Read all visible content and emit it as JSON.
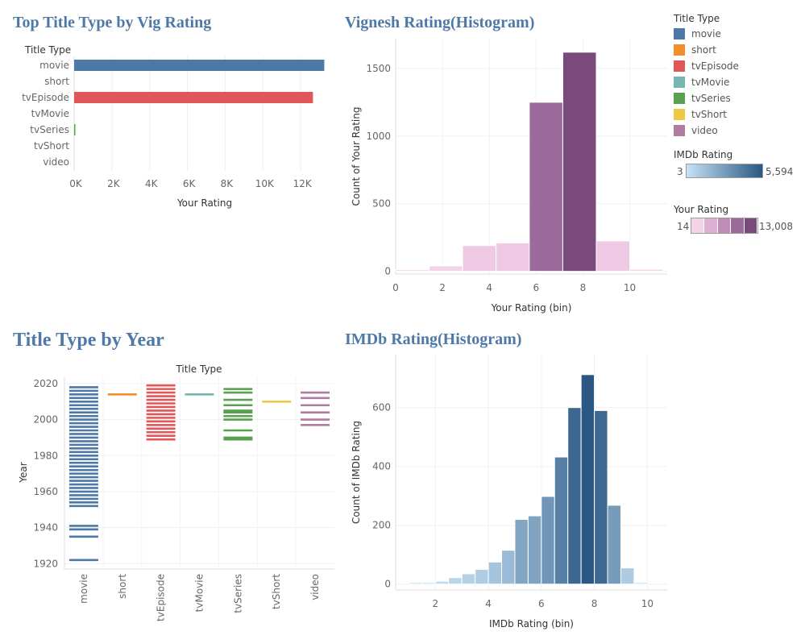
{
  "titles": {
    "t1": "Top Title Type by Vig Rating",
    "t2": "Vignesh Rating(Histogram)",
    "t3": "Title Type by Year",
    "t4": "IMDb Rating(Histogram)"
  },
  "legend": {
    "title": "Title Type",
    "items": [
      {
        "label": "movie",
        "color": "#4e79a7"
      },
      {
        "label": "short",
        "color": "#f28e2b"
      },
      {
        "label": "tvEpisode",
        "color": "#e15759"
      },
      {
        "label": "tvMovie",
        "color": "#76b7b2"
      },
      {
        "label": "tvSeries",
        "color": "#59a14f"
      },
      {
        "label": "tvShort",
        "color": "#edc948"
      },
      {
        "label": "video",
        "color": "#b07aa1"
      }
    ],
    "imdb_scale": {
      "title": "IMDb Rating",
      "min": "3",
      "max": "5,594",
      "color_low": "#c6e2f5",
      "color_high": "#2a5783"
    },
    "your_scale": {
      "title": "Your Rating",
      "min": "14",
      "max": "13,008",
      "colors": [
        "#f2d4e8",
        "#dbb0d2",
        "#bf8db8",
        "#9d6a9c",
        "#7b4a7d"
      ]
    }
  },
  "chart_data": [
    {
      "type": "bar",
      "title": "Top Title Type by Vig Rating",
      "header": "Title Type",
      "orientation": "horizontal",
      "categories": [
        "movie",
        "short",
        "tvEpisode",
        "tvMovie",
        "tvSeries",
        "tvShort",
        "video"
      ],
      "values": [
        13250,
        0,
        12650,
        0,
        30,
        0,
        0
      ],
      "colors": [
        "#4e79a7",
        "#f28e2b",
        "#e15759",
        "#76b7b2",
        "#59a14f",
        "#edc948",
        "#b07aa1"
      ],
      "xlabel": "Your Rating",
      "xticks": [
        "0K",
        "2K",
        "4K",
        "6K",
        "8K",
        "10K",
        "12K"
      ],
      "xlim": [
        0,
        14000
      ]
    },
    {
      "type": "bar",
      "title": "Vignesh Rating(Histogram)",
      "bins": [
        {
          "x": 0,
          "v": 5
        },
        {
          "x": 1.43,
          "v": 40
        },
        {
          "x": 2.86,
          "v": 190
        },
        {
          "x": 4.29,
          "v": 210
        },
        {
          "x": 5.71,
          "v": 1250
        },
        {
          "x": 7.14,
          "v": 1620
        },
        {
          "x": 8.57,
          "v": 225
        },
        {
          "x": 10,
          "v": 15
        }
      ],
      "bin_width": 1.43,
      "colors": [
        "#f2d4e8",
        "#f2d4e8",
        "#efc8e3",
        "#efc8e3",
        "#9d6a9c",
        "#7b4a7d",
        "#efc8e3",
        "#f2d4e8"
      ],
      "xlabel": "Your Rating (bin)",
      "ylabel": "Count of Your Rating",
      "xticks": [
        0,
        2,
        4,
        6,
        8,
        10
      ],
      "yticks": [
        0,
        500,
        1000,
        1500
      ],
      "xlim": [
        0,
        11.6
      ],
      "ylim": [
        -20,
        1720
      ]
    },
    {
      "type": "scatter",
      "title": "Title Type by Year",
      "header": "Title Type",
      "categories": [
        "movie",
        "short",
        "tvEpisode",
        "tvMovie",
        "tvSeries",
        "tvShort",
        "video"
      ],
      "colors": [
        "#4e79a7",
        "#f28e2b",
        "#e15759",
        "#76b7b2",
        "#59a14f",
        "#edc948",
        "#b07aa1"
      ],
      "years": [
        [
          1922,
          1935,
          1939,
          1941,
          1952,
          1954,
          1956,
          1958,
          1960,
          1962,
          1964,
          1966,
          1968,
          1970,
          1972,
          1974,
          1976,
          1978,
          1980,
          1982,
          1984,
          1986,
          1988,
          1990,
          1992,
          1994,
          1996,
          1998,
          2000,
          2002,
          2004,
          2006,
          2008,
          2010,
          2012,
          2014,
          2016,
          2018
        ],
        [
          2014
        ],
        [
          1989,
          1991,
          1993,
          1995,
          1997,
          1999,
          2001,
          2003,
          2005,
          2007,
          2009,
          2011,
          2013,
          2015,
          2017,
          2019
        ],
        [
          2014
        ],
        [
          1989,
          1990,
          1994,
          2000,
          2002,
          2004,
          2005,
          2008,
          2011,
          2015,
          2017
        ],
        [
          2010
        ],
        [
          1997,
          2000,
          2004,
          2008,
          2012,
          2015
        ]
      ],
      "ylabel": "Year",
      "yticks": [
        1920,
        1940,
        1960,
        1980,
        2000,
        2020
      ],
      "ylim": [
        1917,
        2024
      ]
    },
    {
      "type": "bar",
      "title": "IMDb Rating(Histogram)",
      "bins": [
        {
          "x": 1,
          "v": 3
        },
        {
          "x": 1.5,
          "v": 5
        },
        {
          "x": 2,
          "v": 10
        },
        {
          "x": 2.5,
          "v": 22
        },
        {
          "x": 3,
          "v": 35
        },
        {
          "x": 3.5,
          "v": 50
        },
        {
          "x": 4,
          "v": 75
        },
        {
          "x": 4.5,
          "v": 115
        },
        {
          "x": 5,
          "v": 220
        },
        {
          "x": 5.5,
          "v": 232
        },
        {
          "x": 6,
          "v": 298
        },
        {
          "x": 6.5,
          "v": 432
        },
        {
          "x": 7,
          "v": 600
        },
        {
          "x": 7.5,
          "v": 712
        },
        {
          "x": 8,
          "v": 590
        },
        {
          "x": 8.5,
          "v": 268
        },
        {
          "x": 9,
          "v": 55
        },
        {
          "x": 9.5,
          "v": 3
        }
      ],
      "bin_width": 0.5,
      "xlabel": "IMDb Rating (bin)",
      "ylabel": "Count of IMDb Rating",
      "xticks": [
        2,
        4,
        6,
        8,
        10
      ],
      "yticks": [
        0,
        200,
        400,
        600
      ],
      "xlim": [
        0.5,
        10.75
      ],
      "ylim": [
        -20,
        780
      ]
    }
  ]
}
